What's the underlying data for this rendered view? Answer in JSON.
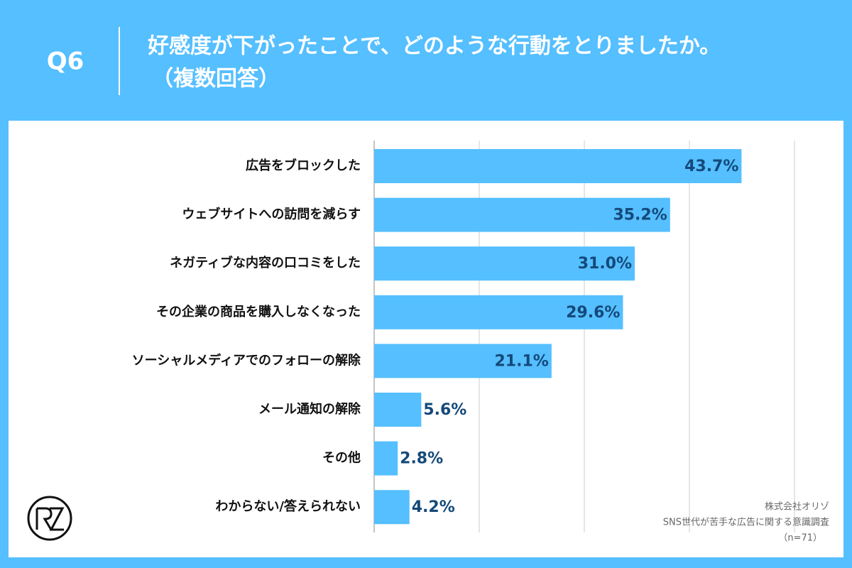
{
  "chart_data": {
    "type": "bar",
    "orientation": "horizontal",
    "question": "Q6",
    "title": "好感度が下がったことで、どのような行動をとりましたか。",
    "subtitle": "（複数回答）",
    "categories": [
      "広告をブロックした",
      "ウェブサイトへの訪問を減らす",
      "ネガティブな内容の口コミをした",
      "その企業の商品を購入しなくなった",
      "ソーシャルメディアでのフォローの解除",
      "メール通知の解除",
      "その他",
      "わからない/答えられない"
    ],
    "values": [
      43.7,
      35.2,
      31.0,
      29.6,
      21.1,
      5.6,
      2.8,
      4.2
    ],
    "value_labels": [
      "43.7%",
      "35.2%",
      "31.0%",
      "29.6%",
      "21.1%",
      "5.6%",
      "2.8%",
      "4.2%"
    ],
    "color": "#55bfff",
    "xlim": [
      0,
      50
    ],
    "xticks": [
      0,
      12.5,
      25,
      37.5,
      50
    ],
    "grid": true,
    "source": [
      "株式会社オリゾ",
      "SNS世代が苦手な広告に関する意識調査",
      "（n=71）"
    ]
  }
}
